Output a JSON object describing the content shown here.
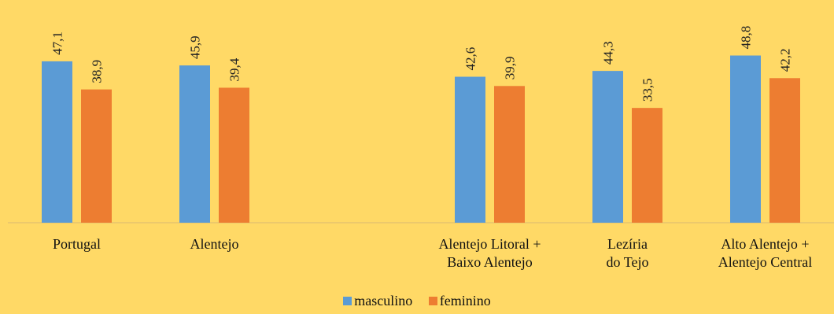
{
  "chart_data": {
    "type": "bar",
    "categories": [
      [
        "Portugal"
      ],
      [
        "Alentejo"
      ],
      [],
      [
        "Alentejo Litoral +",
        "Baixo Alentejo"
      ],
      [
        "Lezíria",
        "do Tejo"
      ],
      [
        "Alto Alentejo +",
        "Alentejo Central"
      ]
    ],
    "series": [
      {
        "name": "masculino",
        "color": "#5B9BD5",
        "values": [
          47.1,
          45.9,
          null,
          42.6,
          44.3,
          48.8
        ],
        "labels": [
          "47,1",
          "45,9",
          "",
          "42,6",
          "44,3",
          "48,8"
        ]
      },
      {
        "name": "feminino",
        "color": "#ED7D31",
        "values": [
          38.9,
          39.4,
          null,
          39.9,
          33.5,
          42.2
        ],
        "labels": [
          "38,9",
          "39,4",
          "",
          "39,9",
          "33,5",
          "42,2"
        ]
      }
    ],
    "ylim": [
      0,
      65
    ],
    "legend_position": "bottom",
    "grid": false
  }
}
